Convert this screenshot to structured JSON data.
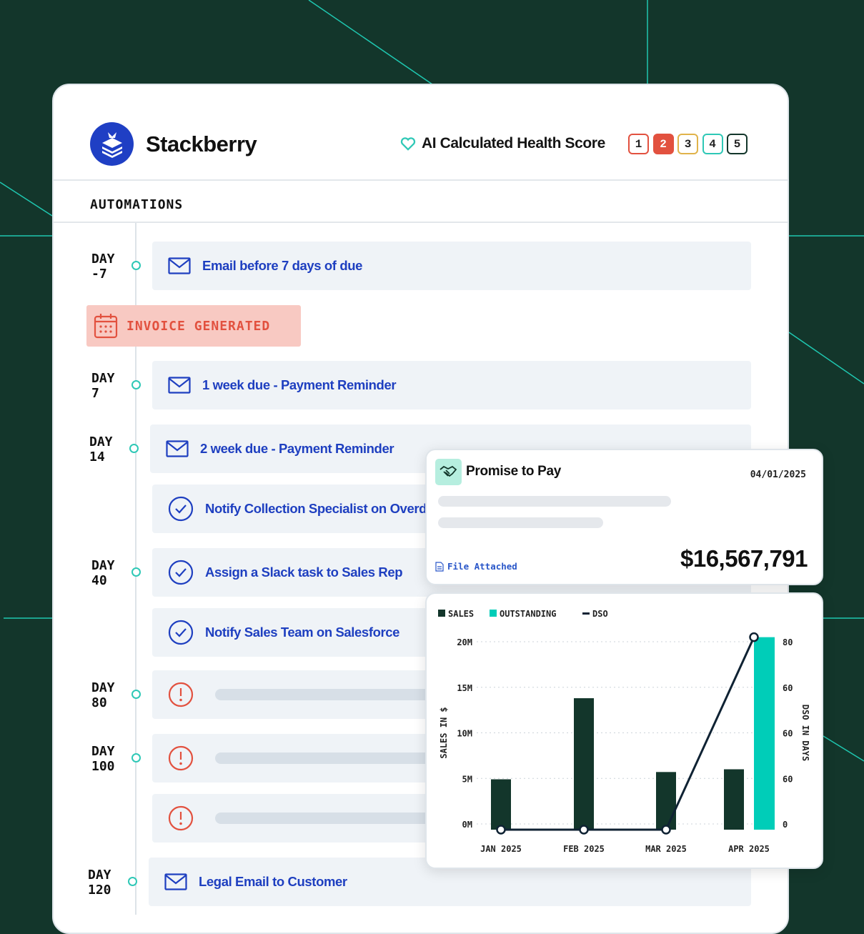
{
  "brand": {
    "name": "Stackberry",
    "logo_icon": "stacked-layers-icon"
  },
  "health": {
    "label": "AI Calculated Health Score",
    "icon": "heart-icon",
    "scores": [
      "1",
      "2",
      "3",
      "4",
      "5"
    ],
    "selected": "2",
    "colors": [
      "#e2513f",
      "#e2513f",
      "#e0b34a",
      "#2ec8b6",
      "#13362b"
    ]
  },
  "section_title": "AUTOMATIONS",
  "invoice_banner": {
    "label": "INVOICE GENERATED",
    "icon": "calendar-icon"
  },
  "rows": [
    {
      "day": "DAY\n-7",
      "icon": "mail",
      "label": "Email before 7 days of due"
    },
    {
      "day": "DAY\n7",
      "icon": "mail",
      "label": "1 week due - Payment Reminder"
    },
    {
      "day": "DAY\n14",
      "icon": "mail",
      "label": "2 week due - Payment Reminder"
    },
    {
      "day": "",
      "icon": "check",
      "label": "Notify Collection Specialist on Overdue"
    },
    {
      "day": "DAY\n40",
      "icon": "check",
      "label": "Assign a Slack task to Sales Rep"
    },
    {
      "day": "",
      "icon": "check",
      "label": "Notify Sales Team on Salesforce"
    },
    {
      "day": "DAY\n80",
      "icon": "alert",
      "label": ""
    },
    {
      "day": "DAY\n100",
      "icon": "alert",
      "label": ""
    },
    {
      "day": "",
      "icon": "alert",
      "label": ""
    },
    {
      "day": "DAY\n120",
      "icon": "mail",
      "label": "Legal Email to Customer"
    }
  ],
  "promise": {
    "title": "Promise to Pay",
    "date": "04/01/2025",
    "attachment": "File Attached",
    "amount": "$16,567,791",
    "icon": "handshake-icon"
  },
  "chart_data": {
    "type": "bar",
    "categories": [
      "JAN 2025",
      "FEB 2025",
      "MAR 2025",
      "APR 2025"
    ],
    "series": [
      {
        "name": "SALES",
        "type": "bar",
        "color": "#13362b",
        "values": [
          4.9,
          13.8,
          5.7,
          6.0
        ]
      },
      {
        "name": "OUTSTANDING",
        "type": "bar",
        "color": "#00cdb8",
        "values": [
          null,
          null,
          null,
          20.5
        ]
      },
      {
        "name": "DSO",
        "type": "line",
        "axis": "right",
        "color": "#0f2233",
        "values": [
          0,
          0,
          0,
          82
        ]
      }
    ],
    "ylabel": "SALES IN $",
    "y2label": "DSO IN DAYS",
    "yticks": [
      "0M",
      "5M",
      "10M",
      "15M",
      "20M"
    ],
    "ylim": [
      0,
      20
    ],
    "y2ticks": [
      "0",
      "60",
      "60",
      "60",
      "80"
    ],
    "grid": true,
    "legend": "top-left"
  }
}
